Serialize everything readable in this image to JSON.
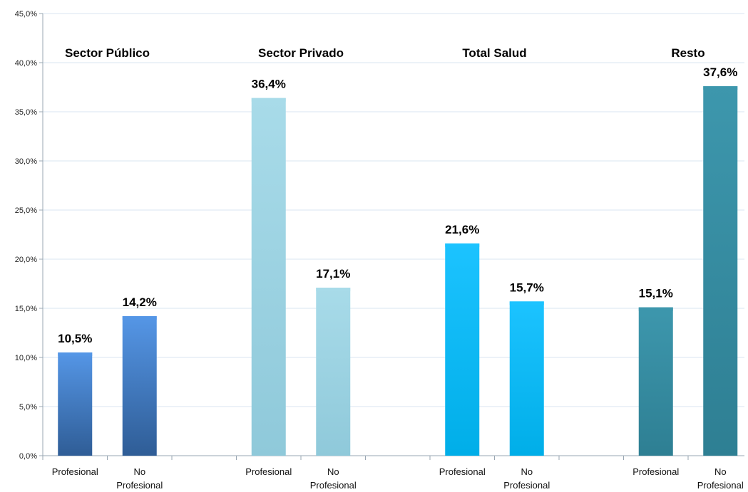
{
  "chart_data": {
    "type": "bar",
    "ylim": [
      0,
      45
    ],
    "ytick_step": 5,
    "ytick_labels": [
      "0,0%",
      "5,0%",
      "10,0%",
      "15,0%",
      "20,0%",
      "25,0%",
      "30,0%",
      "35,0%",
      "40,0%",
      "45,0%"
    ],
    "grid": true,
    "groups": [
      {
        "name": "Sector Público",
        "color_light": "#5596e6",
        "color_dark": "#2f5d96",
        "bars": [
          {
            "label": "Profesional",
            "value": 10.5,
            "value_label": "10,5%"
          },
          {
            "label": "No Profesional",
            "value": 14.2,
            "value_label": "14,2%"
          }
        ]
      },
      {
        "name": "Sector Privado",
        "color_light": "#a8dbe9",
        "color_dark": "#8fc9da",
        "bars": [
          {
            "label": "Profesional",
            "value": 36.4,
            "value_label": "36,4%"
          },
          {
            "label": "No Profesional",
            "value": 17.1,
            "value_label": "17,1%"
          }
        ]
      },
      {
        "name": "Total Salud",
        "color_light": "#1cc3ff",
        "color_dark": "#00aee8",
        "bars": [
          {
            "label": "Profesional",
            "value": 21.6,
            "value_label": "21,6%"
          },
          {
            "label": "No Profesional",
            "value": 15.7,
            "value_label": "15,7%"
          }
        ]
      },
      {
        "name": "Resto",
        "color_light": "#3d97ad",
        "color_dark": "#2e7f93",
        "bars": [
          {
            "label": "Profesional",
            "value": 15.1,
            "value_label": "15,1%"
          },
          {
            "label": "No Profesional",
            "value": 37.6,
            "value_label": "37,6%"
          }
        ]
      }
    ]
  }
}
